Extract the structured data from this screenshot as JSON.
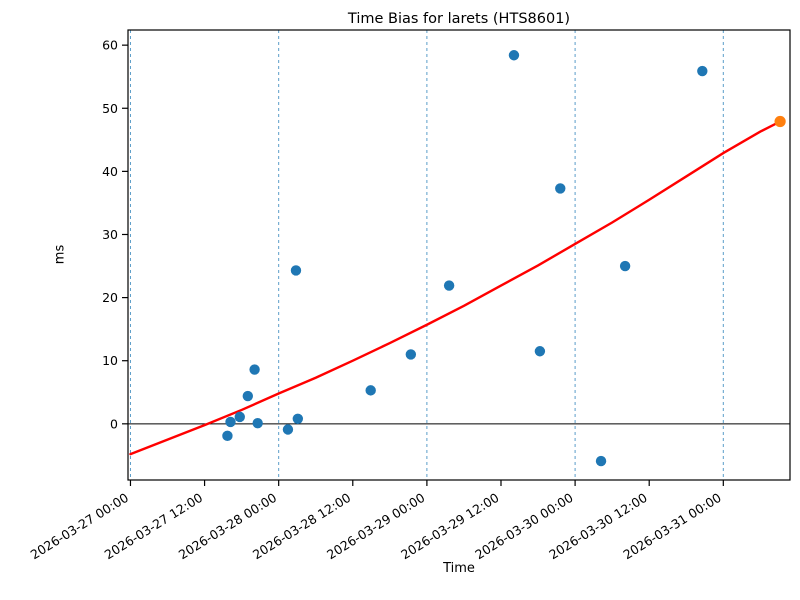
{
  "chart_data": {
    "type": "scatter",
    "title": "Time Bias for larets (HTS8601)",
    "xlabel": "Time",
    "ylabel": "ms",
    "y_ticks": [
      0,
      10,
      20,
      30,
      40,
      50,
      60
    ],
    "ylim": [
      -8.9,
      62.4
    ],
    "xlim_hours": [
      -0.4,
      106.8
    ],
    "x_ticks": [
      {
        "hours": 0,
        "label": "2026-03-27 00:00"
      },
      {
        "hours": 12,
        "label": "2026-03-27 12:00"
      },
      {
        "hours": 24,
        "label": "2026-03-28 00:00"
      },
      {
        "hours": 36,
        "label": "2026-03-28 12:00"
      },
      {
        "hours": 48,
        "label": "2026-03-29 00:00"
      },
      {
        "hours": 60,
        "label": "2026-03-29 12:00"
      },
      {
        "hours": 72,
        "label": "2026-03-30 00:00"
      },
      {
        "hours": 84,
        "label": "2026-03-30 12:00"
      },
      {
        "hours": 96,
        "label": "2026-03-31 00:00"
      }
    ],
    "grid_hours": [
      0,
      24,
      48,
      72,
      96
    ],
    "zero_line_value": 0,
    "colors": {
      "scatter": "#1f77b4",
      "prediction": "#ff7f0e",
      "trend": "#ff0000",
      "grid": "#5b9dc9",
      "axis": "#000000"
    },
    "series": [
      {
        "name": "measured-bias",
        "marker": "circle",
        "points": [
          {
            "time": "2026-03-27 15:42",
            "hours": 15.7,
            "ms": -1.9
          },
          {
            "time": "2026-03-27 16:12",
            "hours": 16.2,
            "ms": 0.3
          },
          {
            "time": "2026-03-27 17:42",
            "hours": 17.7,
            "ms": 1.1
          },
          {
            "time": "2026-03-27 19:00",
            "hours": 19.0,
            "ms": 4.4
          },
          {
            "time": "2026-03-27 20:06",
            "hours": 20.1,
            "ms": 8.6
          },
          {
            "time": "2026-03-27 20:36",
            "hours": 20.6,
            "ms": 0.1
          },
          {
            "time": "2026-03-28 01:30",
            "hours": 25.5,
            "ms": -0.9
          },
          {
            "time": "2026-03-28 02:48",
            "hours": 26.8,
            "ms": 24.3
          },
          {
            "time": "2026-03-28 03:06",
            "hours": 27.1,
            "ms": 0.8
          },
          {
            "time": "2026-03-28 14:54",
            "hours": 38.9,
            "ms": 5.3
          },
          {
            "time": "2026-03-28 21:24",
            "hours": 45.4,
            "ms": 11.0
          },
          {
            "time": "2026-03-29 03:36",
            "hours": 51.6,
            "ms": 21.9
          },
          {
            "time": "2026-03-29 14:06",
            "hours": 62.1,
            "ms": 58.4
          },
          {
            "time": "2026-03-29 18:18",
            "hours": 66.3,
            "ms": 11.5
          },
          {
            "time": "2026-03-29 21:36",
            "hours": 69.6,
            "ms": 37.3
          },
          {
            "time": "2026-03-30 04:12",
            "hours": 76.2,
            "ms": -5.9
          },
          {
            "time": "2026-03-30 08:06",
            "hours": 80.1,
            "ms": 25.0
          },
          {
            "time": "2026-03-30 20:36",
            "hours": 92.6,
            "ms": 55.9
          }
        ]
      },
      {
        "name": "prediction",
        "marker": "circle",
        "points": [
          {
            "time": "2026-03-31 09:12",
            "hours": 105.2,
            "ms": 47.9
          }
        ]
      },
      {
        "name": "trend-fit",
        "marker": "line",
        "points": [
          {
            "hours": 0,
            "ms": -4.8
          },
          {
            "hours": 6,
            "ms": -2.5
          },
          {
            "hours": 12,
            "ms": -0.2
          },
          {
            "hours": 18,
            "ms": 2.2
          },
          {
            "hours": 24,
            "ms": 4.8
          },
          {
            "hours": 30,
            "ms": 7.3
          },
          {
            "hours": 36,
            "ms": 10.0
          },
          {
            "hours": 42,
            "ms": 12.8
          },
          {
            "hours": 48,
            "ms": 15.7
          },
          {
            "hours": 54,
            "ms": 18.7
          },
          {
            "hours": 60,
            "ms": 21.9
          },
          {
            "hours": 66,
            "ms": 25.1
          },
          {
            "hours": 72,
            "ms": 28.5
          },
          {
            "hours": 78,
            "ms": 31.9
          },
          {
            "hours": 84,
            "ms": 35.5
          },
          {
            "hours": 90,
            "ms": 39.2
          },
          {
            "hours": 96,
            "ms": 42.9
          },
          {
            "hours": 102,
            "ms": 46.3
          },
          {
            "hours": 105.2,
            "ms": 47.9
          }
        ]
      }
    ],
    "legend": null,
    "grid": "vertical-daily-dashed"
  }
}
